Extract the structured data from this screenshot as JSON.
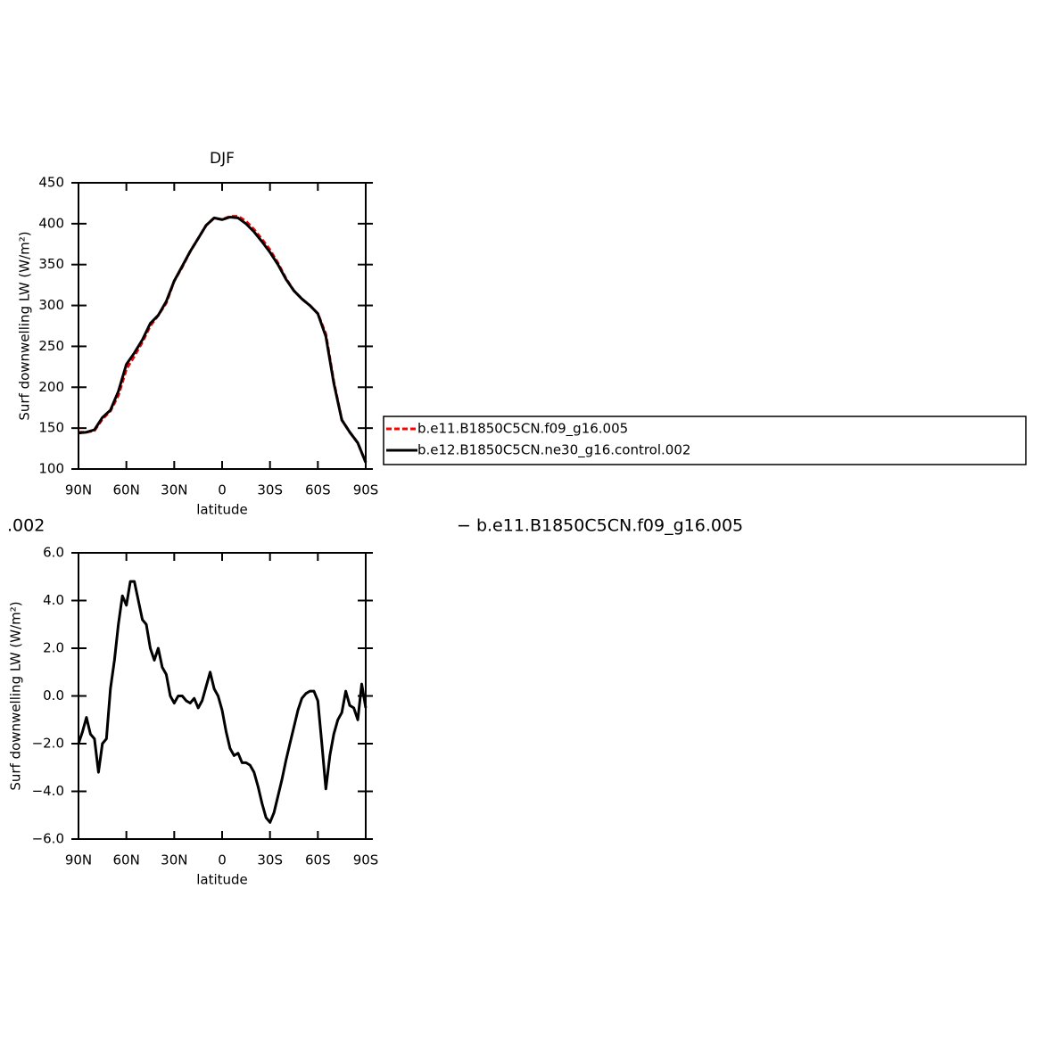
{
  "chart_data": [
    {
      "type": "line",
      "title": "DJF",
      "xlabel": "latitude",
      "ylabel": "Surf downwelling LW (W/m²)",
      "x": [
        90,
        85,
        80,
        75,
        70,
        65,
        60,
        55,
        50,
        45,
        40,
        35,
        30,
        25,
        20,
        15,
        10,
        5,
        0,
        -5,
        -10,
        -15,
        -20,
        -25,
        -30,
        -35,
        -40,
        -45,
        -50,
        -55,
        -60,
        -65,
        -70,
        -75,
        -80,
        -85,
        -90
      ],
      "series": [
        {
          "name": "b.e11.B1850C5CN.f09_g16.005",
          "color": "#ff0000",
          "dash": true,
          "values": [
            145,
            145,
            147,
            161,
            171,
            190,
            222,
            238,
            255,
            275,
            288,
            303,
            330,
            347,
            366,
            382,
            398,
            407,
            405,
            409,
            409,
            403,
            393,
            381,
            368,
            352,
            333,
            318,
            308,
            300,
            290,
            265,
            207,
            160,
            145,
            132,
            108
          ]
        },
        {
          "name": "b.e12.B1850C5CN.ne30_g16.control.002",
          "color": "#000000",
          "dash": false,
          "values": [
            144,
            145,
            148,
            163,
            172,
            195,
            228,
            242,
            258,
            278,
            288,
            305,
            330,
            348,
            366,
            382,
            398,
            407,
            405,
            408,
            407,
            400,
            390,
            378,
            365,
            350,
            332,
            318,
            308,
            300,
            290,
            262,
            205,
            160,
            145,
            132,
            108
          ]
        }
      ],
      "xlim": [
        90,
        -90
      ],
      "xticks": [
        {
          "value": 90,
          "label": "90N"
        },
        {
          "value": 60,
          "label": "60N"
        },
        {
          "value": 30,
          "label": "30N"
        },
        0,
        {
          "value": -30,
          "label": "30S"
        },
        {
          "value": -60,
          "label": "60S"
        },
        {
          "value": -90,
          "label": "90S"
        }
      ],
      "ylim": [
        100,
        450
      ],
      "yticks": [
        100,
        150,
        200,
        250,
        300,
        350,
        400,
        450
      ],
      "legend": "right"
    },
    {
      "type": "line",
      "title_left": ".002",
      "title_right": "− b.e11.B1850C5CN.f09_g16.005",
      "xlabel": "latitude",
      "ylabel": "Surf downwelling LW (W/m²)",
      "x": [
        90,
        87.5,
        85,
        82.5,
        80,
        77.5,
        75,
        72.5,
        70,
        67.5,
        65,
        62.5,
        60,
        57.5,
        55,
        52.5,
        50,
        47.5,
        45,
        42.5,
        40,
        37.5,
        35,
        32.5,
        30,
        27.5,
        25,
        22.5,
        20,
        17.5,
        15,
        12.5,
        10,
        7.5,
        5,
        2.5,
        0,
        -2.5,
        -5,
        -7.5,
        -10,
        -12.5,
        -15,
        -17.5,
        -20,
        -22.5,
        -25,
        -27.5,
        -30,
        -32.5,
        -35,
        -37.5,
        -40,
        -42.5,
        -45,
        -47.5,
        -50,
        -52.5,
        -55,
        -57.5,
        -60,
        -62.5,
        -65,
        -67.5,
        -70,
        -72.5,
        -75,
        -77.5,
        -80,
        -82.5,
        -85,
        -87.5,
        -90
      ],
      "series": [
        {
          "color": "#000000",
          "values": [
            -2.0,
            -1.5,
            -0.9,
            -1.6,
            -1.8,
            -3.2,
            -2.0,
            -1.8,
            0.3,
            1.5,
            3.0,
            4.2,
            3.8,
            4.8,
            4.8,
            4.0,
            3.2,
            3.0,
            2.0,
            1.5,
            2.0,
            1.2,
            0.9,
            0.0,
            -0.3,
            0.0,
            0.0,
            -0.2,
            -0.3,
            -0.1,
            -0.5,
            -0.2,
            0.4,
            1.0,
            0.3,
            0.0,
            -0.6,
            -1.5,
            -2.2,
            -2.5,
            -2.4,
            -2.8,
            -2.8,
            -2.9,
            -3.2,
            -3.8,
            -4.5,
            -5.1,
            -5.3,
            -4.9,
            -4.2,
            -3.5,
            -2.7,
            -2.0,
            -1.3,
            -0.6,
            -0.1,
            0.1,
            0.2,
            0.2,
            -0.2,
            -2.0,
            -3.9,
            -2.5,
            -1.6,
            -1.0,
            -0.7,
            0.2,
            -0.4,
            -0.5,
            -1.0,
            0.5,
            -0.5
          ]
        }
      ],
      "xlim": [
        90,
        -90
      ],
      "xticks": [
        {
          "value": 90,
          "label": "90N"
        },
        {
          "value": 60,
          "label": "60N"
        },
        {
          "value": 30,
          "label": "30N"
        },
        0,
        {
          "value": -30,
          "label": "30S"
        },
        {
          "value": -60,
          "label": "60S"
        },
        {
          "value": -90,
          "label": "90S"
        }
      ],
      "ylim": [
        -6,
        6
      ],
      "yticks": [
        {
          "value": -6,
          "label": "−6.0"
        },
        {
          "value": -4,
          "label": "−4.0"
        },
        {
          "value": -2,
          "label": "−2.0"
        },
        {
          "value": 0,
          "label": "0.0"
        },
        {
          "value": 2,
          "label": "2.0"
        },
        {
          "value": 4,
          "label": "4.0"
        },
        {
          "value": 6,
          "label": "6.0"
        }
      ]
    }
  ]
}
